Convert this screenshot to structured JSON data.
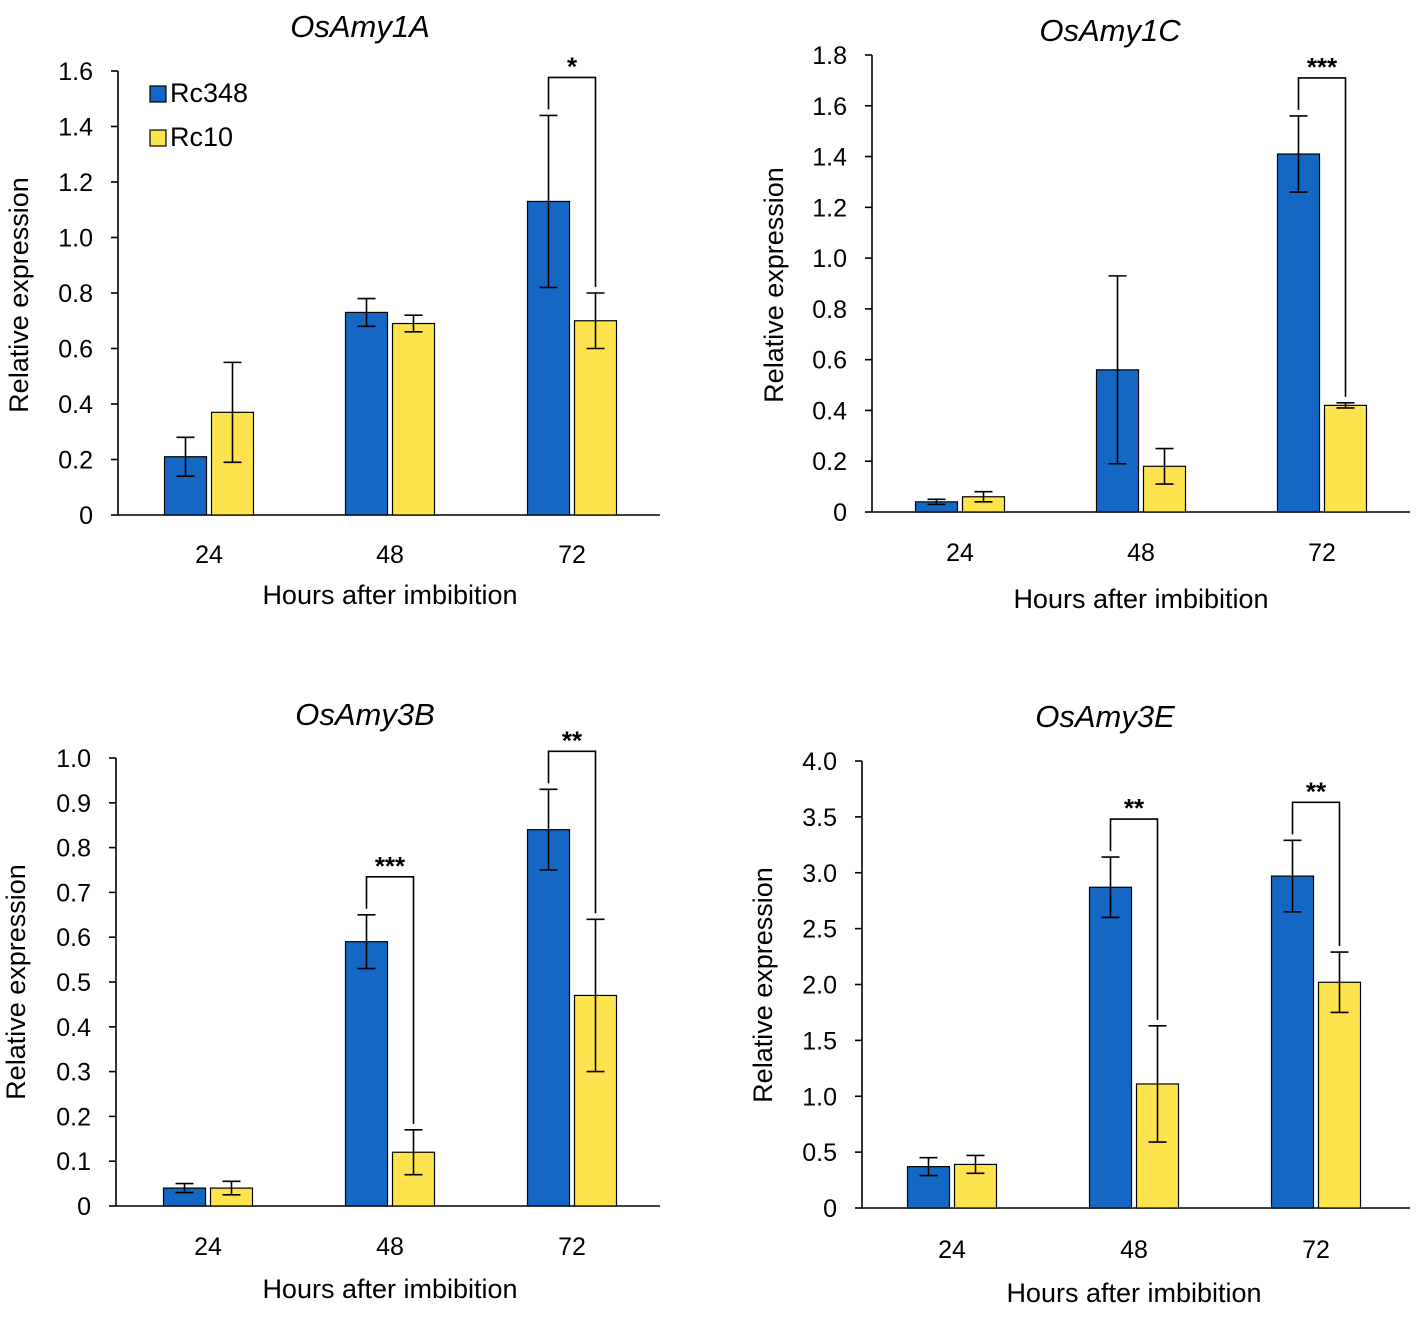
{
  "colors": {
    "rc348": "#1468c4",
    "rc10": "#fde34d",
    "axis": "#000000"
  },
  "legend": [
    {
      "name": "Rc348",
      "colorKey": "rc348"
    },
    {
      "name": "Rc10",
      "colorKey": "rc10"
    }
  ],
  "chart_data": [
    {
      "type": "bar",
      "title": "OsAmy1A",
      "xlabel": "Hours after imbibition",
      "ylabel": "Relative expression",
      "categories": [
        "24",
        "48",
        "72"
      ],
      "ylim": [
        0,
        1.6
      ],
      "yticks": [
        "0",
        "0.2",
        "0.4",
        "0.6",
        "0.8",
        "1.0",
        "1.2",
        "1.4",
        "1.6"
      ],
      "series": [
        {
          "name": "Rc348",
          "values": [
            0.21,
            0.73,
            1.13
          ],
          "errors": [
            0.07,
            0.05,
            0.31
          ]
        },
        {
          "name": "Rc10",
          "values": [
            0.37,
            0.69,
            0.7
          ],
          "errors": [
            0.18,
            0.03,
            0.1
          ]
        }
      ],
      "significance": [
        {
          "category": 2,
          "label": "*"
        }
      ]
    },
    {
      "type": "bar",
      "title": "OsAmy1C",
      "xlabel": "Hours after imbibition",
      "ylabel": "Relative expression",
      "categories": [
        "24",
        "48",
        "72"
      ],
      "ylim": [
        0,
        1.8
      ],
      "yticks": [
        "0",
        "0.2",
        "0.4",
        "0.6",
        "0.8",
        "1.0",
        "1.2",
        "1.4",
        "1.6",
        "1.8"
      ],
      "series": [
        {
          "name": "Rc348",
          "values": [
            0.04,
            0.56,
            1.41
          ],
          "errors": [
            0.01,
            0.37,
            0.15
          ]
        },
        {
          "name": "Rc10",
          "values": [
            0.06,
            0.18,
            0.42
          ],
          "errors": [
            0.02,
            0.07,
            0.01
          ]
        }
      ],
      "significance": [
        {
          "category": 2,
          "label": "***"
        }
      ]
    },
    {
      "type": "bar",
      "title": "OsAmy3B",
      "xlabel": "Hours after imbibition",
      "ylabel": "Relative expression",
      "categories": [
        "24",
        "48",
        "72"
      ],
      "ylim": [
        0,
        1.0
      ],
      "yticks": [
        "0",
        "0.1",
        "0.2",
        "0.3",
        "0.4",
        "0.5",
        "0.6",
        "0.7",
        "0.8",
        "0.9",
        "1.0"
      ],
      "series": [
        {
          "name": "Rc348",
          "values": [
            0.04,
            0.59,
            0.84
          ],
          "errors": [
            0.01,
            0.06,
            0.09
          ]
        },
        {
          "name": "Rc10",
          "values": [
            0.04,
            0.12,
            0.47
          ],
          "errors": [
            0.015,
            0.05,
            0.17
          ]
        }
      ],
      "significance": [
        {
          "category": 1,
          "label": "***"
        },
        {
          "category": 2,
          "label": "**"
        }
      ]
    },
    {
      "type": "bar",
      "title": "OsAmy3E",
      "xlabel": "Hours after imbibition",
      "ylabel": "Relative expression",
      "categories": [
        "24",
        "48",
        "72"
      ],
      "ylim": [
        0,
        4.0
      ],
      "yticks": [
        "0",
        "0.5",
        "1.0",
        "1.5",
        "2.0",
        "2.5",
        "3.0",
        "3.5",
        "4.0"
      ],
      "series": [
        {
          "name": "Rc348",
          "values": [
            0.37,
            2.87,
            2.97
          ],
          "errors": [
            0.08,
            0.27,
            0.32
          ]
        },
        {
          "name": "Rc10",
          "values": [
            0.39,
            1.11,
            2.02
          ],
          "errors": [
            0.08,
            0.52,
            0.27
          ]
        }
      ],
      "significance": [
        {
          "category": 1,
          "label": "**"
        },
        {
          "category": 2,
          "label": "**"
        }
      ]
    }
  ]
}
